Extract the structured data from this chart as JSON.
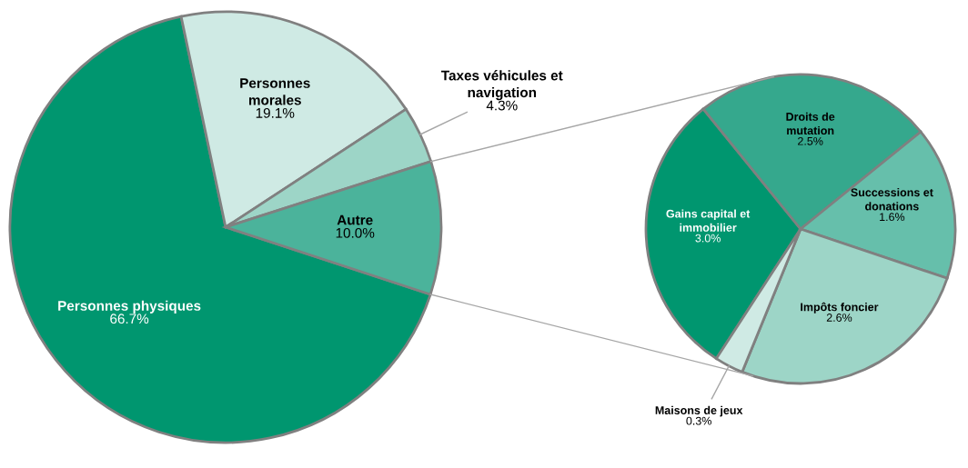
{
  "chart_data": [
    {
      "type": "pie",
      "categories": [
        "Personnes physiques",
        "Personnes\nmorales",
        "Taxes véhicules et\nnavigation",
        "Autre"
      ],
      "values": [
        66.7,
        19.1,
        4.3,
        10.0
      ],
      "value_labels": [
        "66.7%",
        "19.1%",
        "4.3%",
        "10.0%"
      ],
      "colors": [
        "#00966f",
        "#cfeae4",
        "#9dd5c7",
        "#4bb39b"
      ]
    },
    {
      "type": "pie",
      "categories": [
        "Gains capital et\nimmobilier",
        "Droits de\nmutation",
        "Successions et\ndonations",
        "Impôts foncier",
        "Maisons de jeux"
      ],
      "values": [
        3.0,
        2.5,
        1.6,
        2.6,
        0.3
      ],
      "value_labels": [
        "3.0%",
        "2.5%",
        "1.6%",
        "2.6%",
        "0.3%"
      ],
      "colors": [
        "#00966f",
        "#35a88d",
        "#66bfab",
        "#9dd5c7",
        "#cfeae4"
      ]
    }
  ]
}
